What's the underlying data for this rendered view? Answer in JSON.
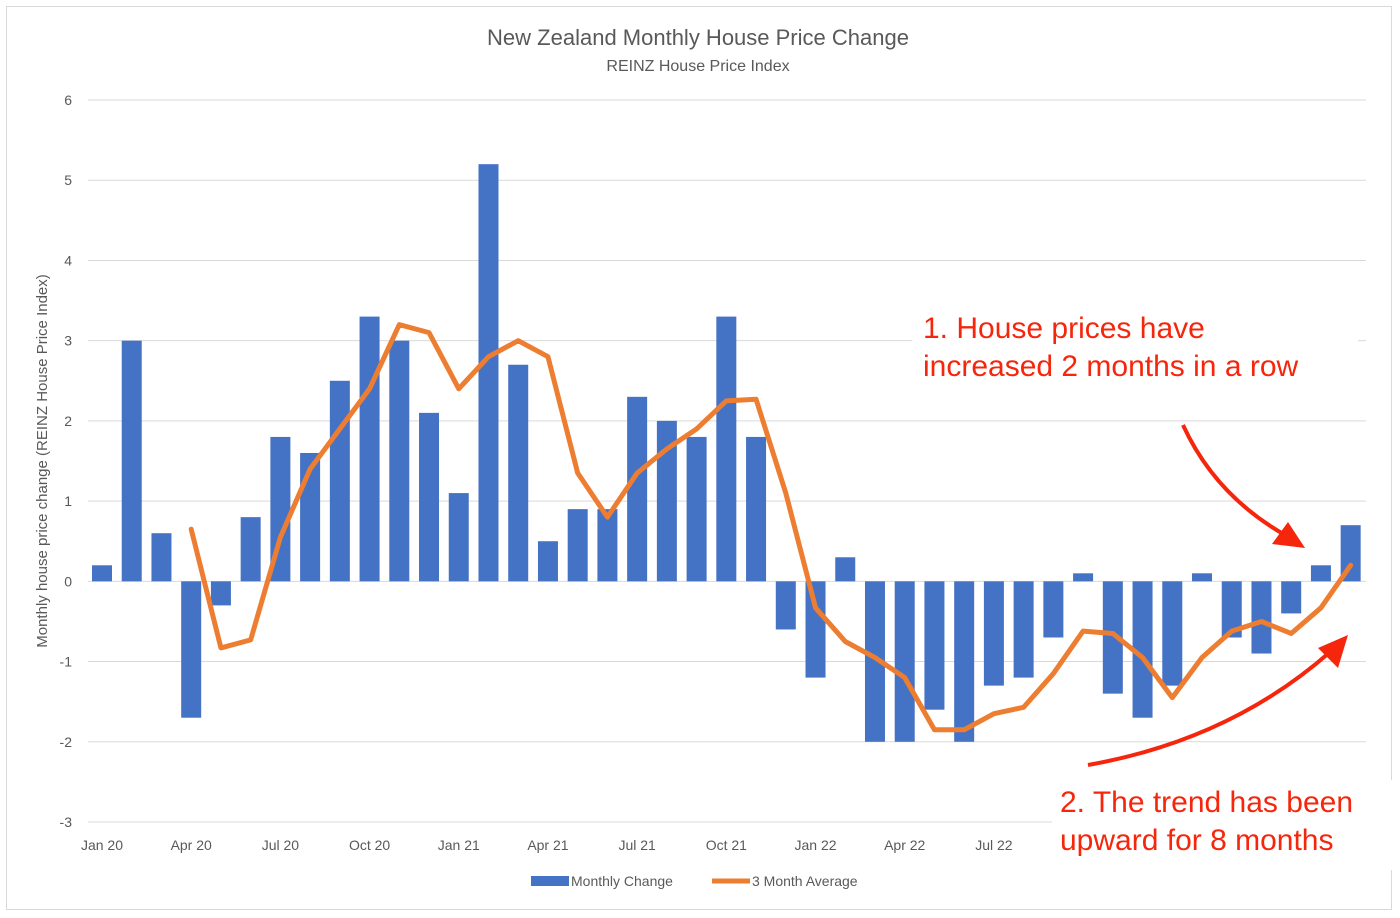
{
  "chart_data": {
    "type": "bar",
    "title": "New Zealand Monthly House Price Change",
    "subtitle": "REINZ House Price Index",
    "xlabel": "",
    "ylabel": "Monthly house price change (REINZ House Price Index)",
    "ylim": [
      -3,
      6
    ],
    "yticks": [
      "-3",
      "-2",
      "-1",
      "0",
      "1",
      "2",
      "3",
      "4",
      "5",
      "6"
    ],
    "xtick_labels": [
      "Jan 20",
      "Apr 20",
      "Jul 20",
      "Oct 20",
      "Jan 21",
      "Apr 21",
      "Jul 21",
      "Oct 21",
      "Jan 22",
      "Apr 22",
      "Jul 22"
    ],
    "grid": true,
    "legend_position": "bottom",
    "categories": [
      "Jan 20",
      "Feb 20",
      "Mar 20",
      "Apr 20",
      "May 20",
      "Jun 20",
      "Jul 20",
      "Aug 20",
      "Sep 20",
      "Oct 20",
      "Nov 20",
      "Dec 20",
      "Jan 21",
      "Feb 21",
      "Mar 21",
      "Apr 21",
      "May 21",
      "Jun 21",
      "Jul 21",
      "Aug 21",
      "Sep 21",
      "Oct 21",
      "Nov 21",
      "Dec 21",
      "Jan 22",
      "Feb 22",
      "Mar 22",
      "Apr 22",
      "May 22",
      "Jun 22",
      "Jul 22",
      "Aug 22",
      "Sep 22",
      "Oct 22",
      "Nov 22",
      "Dec 22",
      "Jan 23",
      "Feb 23",
      "Mar 23",
      "Apr 23",
      "May 23",
      "Jun 23",
      "Jul 23"
    ],
    "series": [
      {
        "name": "Monthly Change",
        "type": "bar",
        "color": "#4472c4",
        "values": [
          0.2,
          3.0,
          0.6,
          -1.7,
          -0.3,
          0.8,
          1.8,
          1.6,
          2.5,
          3.3,
          3.0,
          2.1,
          1.1,
          5.2,
          2.7,
          0.5,
          0.9,
          0.9,
          2.3,
          2.0,
          1.8,
          3.3,
          1.8,
          -0.6,
          -1.2,
          0.3,
          -2.0,
          -2.0,
          -1.6,
          -2.0,
          -1.3,
          -1.2,
          -0.7,
          0.1,
          -1.4,
          -1.7,
          -1.3,
          0.1,
          -0.7,
          -0.9,
          -0.4,
          0.2,
          0.7
        ]
      },
      {
        "name": "3 Month Average",
        "type": "line",
        "color": "#ed7d31",
        "values": [
          null,
          null,
          null,
          0.65,
          -0.83,
          -0.73,
          0.55,
          1.4,
          1.9,
          2.4,
          3.2,
          3.1,
          2.4,
          2.8,
          3.0,
          2.8,
          1.35,
          0.8,
          1.35,
          1.65,
          1.9,
          2.25,
          2.27,
          1.1,
          -0.33,
          -0.75,
          -0.95,
          -1.2,
          -1.85,
          -1.85,
          -1.65,
          -1.57,
          -1.15,
          -0.62,
          -0.65,
          -0.95,
          -1.45,
          -0.95,
          -0.62,
          -0.5,
          -0.65,
          -0.33,
          0.2
        ]
      }
    ],
    "annotations": [
      {
        "lines": [
          "1. House prices have",
          "increased 2 months in a row"
        ],
        "color": "#f5260c"
      },
      {
        "lines": [
          "2. The trend has been",
          "upward for 8 months"
        ],
        "color": "#f5260c"
      }
    ]
  }
}
